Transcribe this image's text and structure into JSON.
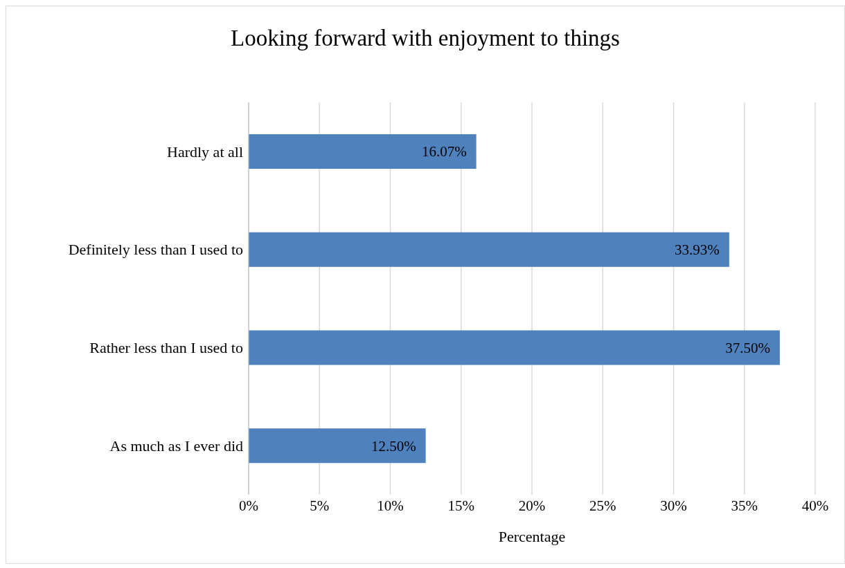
{
  "chart_data": {
    "type": "bar",
    "orientation": "horizontal",
    "title": "Looking forward with enjoyment to things",
    "xlabel": "Percentage",
    "categories": [
      "Hardly at all",
      "Definitely less than I used to",
      "Rather less than I used to",
      "As much as I ever did"
    ],
    "values": [
      16.07,
      33.93,
      37.5,
      12.5
    ],
    "value_labels": [
      "16.07%",
      "33.93%",
      "37.50%",
      "12.50%"
    ],
    "color": "#4f81bd",
    "xlim": [
      0,
      40
    ],
    "xticks": [
      {
        "value": 0,
        "label": "0%"
      },
      {
        "value": 5,
        "label": "5%"
      },
      {
        "value": 10,
        "label": "10%"
      },
      {
        "value": 15,
        "label": "15%"
      },
      {
        "value": 20,
        "label": "20%"
      },
      {
        "value": 25,
        "label": "25%"
      },
      {
        "value": 30,
        "label": "30%"
      },
      {
        "value": 35,
        "label": "35%"
      },
      {
        "value": 40,
        "label": "40%"
      }
    ],
    "grid": "x",
    "legend": false
  }
}
